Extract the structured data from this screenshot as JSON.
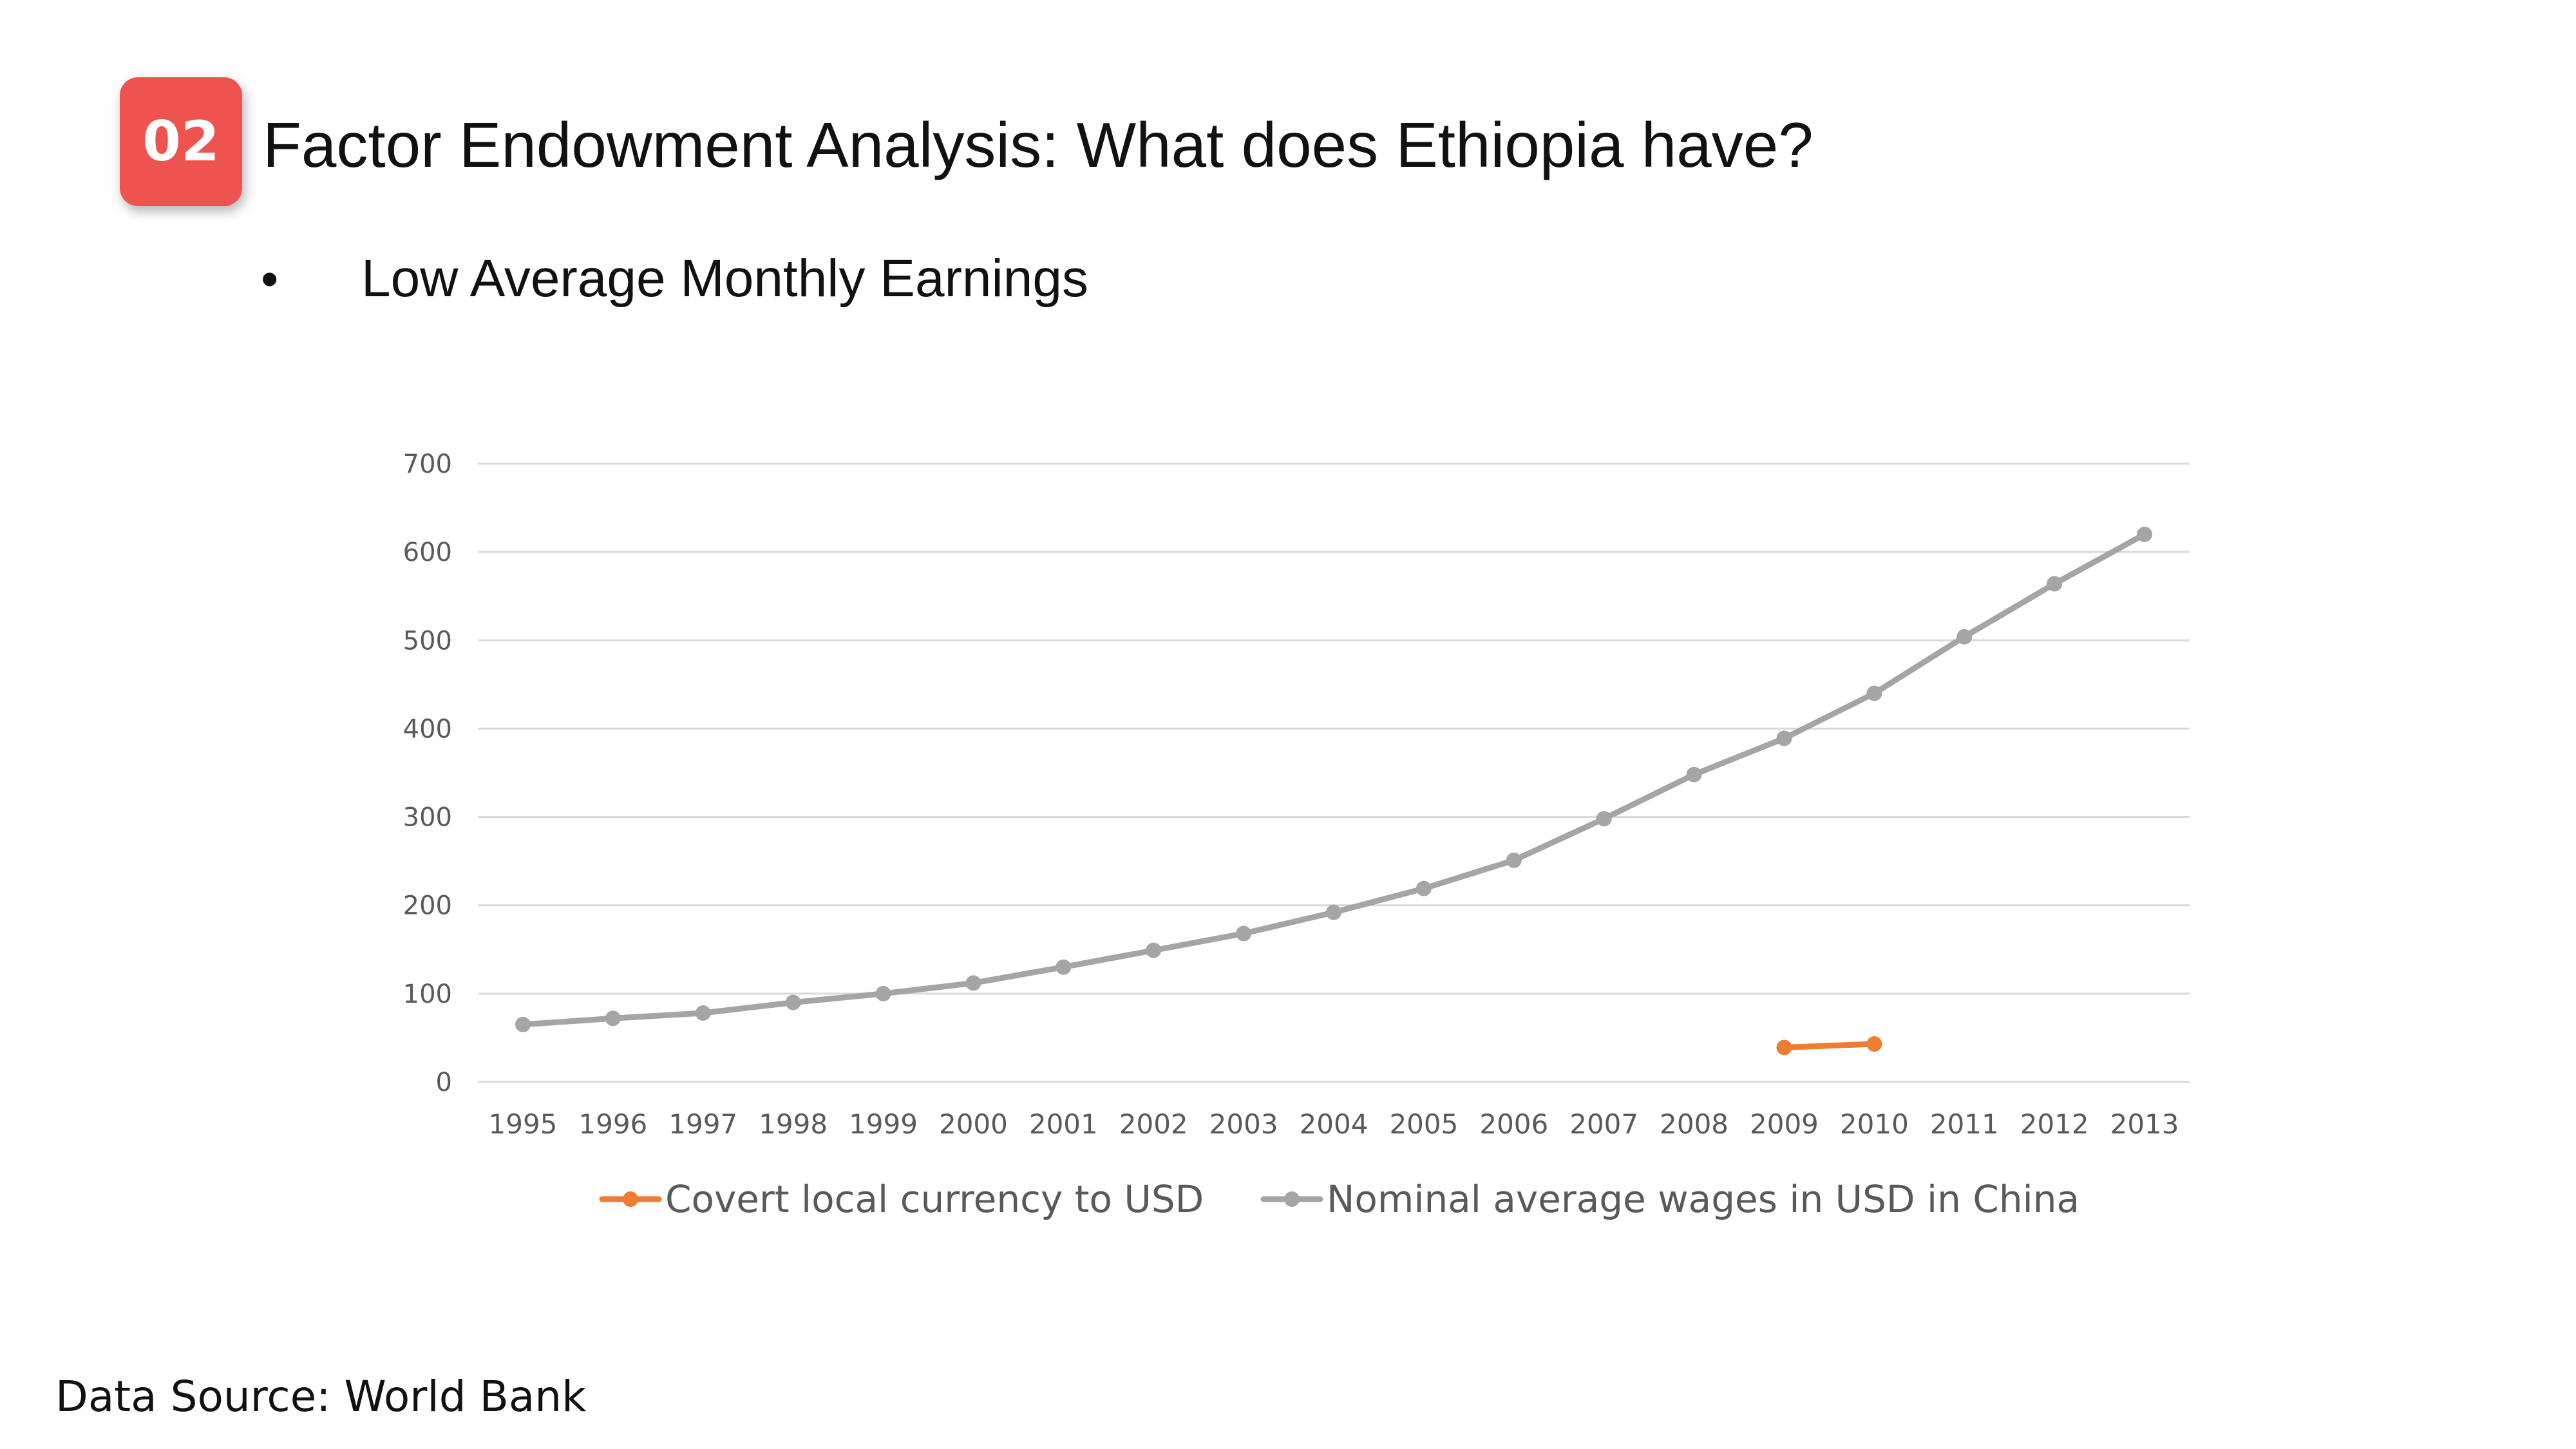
{
  "slide": {
    "badge": "02",
    "title": "Factor Endowment Analysis: What does Ethiopia have?",
    "bullet_marker": "•",
    "bullet": "Low Average Monthly Earnings",
    "source": "Data Source: World Bank"
  },
  "colors": {
    "badge": "#ef5350",
    "grid": "#d9d9d9",
    "axis_text": "#595959"
  },
  "chart_data": {
    "type": "line",
    "title": "",
    "xlabel": "",
    "ylabel": "",
    "x": [
      "1995",
      "1996",
      "1997",
      "1998",
      "1999",
      "2000",
      "2001",
      "2002",
      "2003",
      "2004",
      "2005",
      "2006",
      "2007",
      "2008",
      "2009",
      "2010",
      "2011",
      "2012",
      "2013"
    ],
    "ylim": [
      0,
      700
    ],
    "yticks": [
      0,
      100,
      200,
      300,
      400,
      500,
      600,
      700
    ],
    "grid": true,
    "legend_position": "bottom",
    "series": [
      {
        "name": "Covert local currency to USD",
        "color": "#ed7d31",
        "values": [
          null,
          null,
          null,
          null,
          null,
          null,
          null,
          null,
          null,
          null,
          null,
          null,
          null,
          null,
          39,
          43,
          null,
          null,
          null
        ]
      },
      {
        "name": "Nominal average wages in USD in China",
        "color": "#a5a5a5",
        "values": [
          65,
          72,
          78,
          90,
          100,
          112,
          130,
          149,
          168,
          192,
          219,
          251,
          298,
          348,
          389,
          440,
          504,
          564,
          620
        ]
      }
    ]
  }
}
